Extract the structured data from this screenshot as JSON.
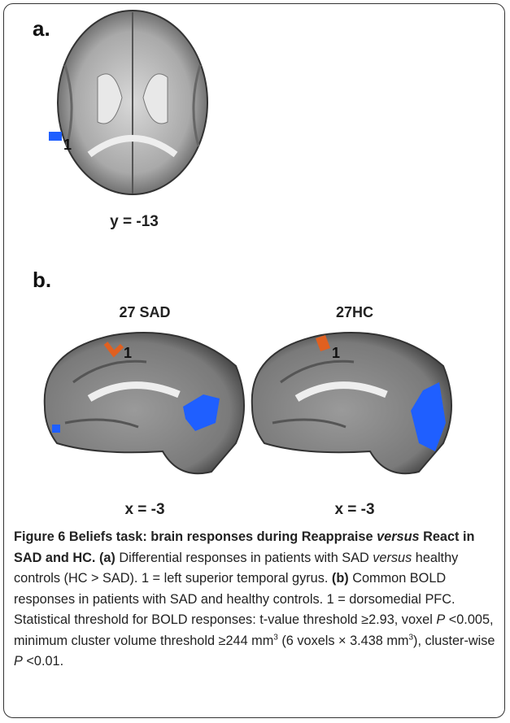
{
  "panel_a": {
    "label": "a.",
    "region_label": "1",
    "coordinate": "y = -13"
  },
  "panel_b": {
    "label": "b.",
    "images": [
      {
        "title": "27 SAD",
        "region_label": "1",
        "coordinate": "x = -3"
      },
      {
        "title": "27HC",
        "region_label": "1",
        "coordinate": "x = -3"
      }
    ]
  },
  "caption": {
    "parts": [
      "Figure 6 Beliefs task: brain responses during Reappraise ",
      "versus",
      " React in SAD and HC.",
      " (a)",
      " Differential responses in patients with SAD ",
      "versus",
      " healthy controls (HC > SAD). 1 = left superior temporal gyrus. ",
      "(b)",
      " Common BOLD responses in patients with SAD and healthy controls. 1 = dorsomedial PFC. Statistical threshold for BOLD responses: t-value threshold ≥2.93, voxel ",
      "P",
      " <0.005, minimum cluster volume threshold ≥244 mm",
      "3",
      " (6 voxels × 3.438 mm",
      "3",
      "), cluster-wise ",
      "P",
      " <0.01."
    ]
  }
}
